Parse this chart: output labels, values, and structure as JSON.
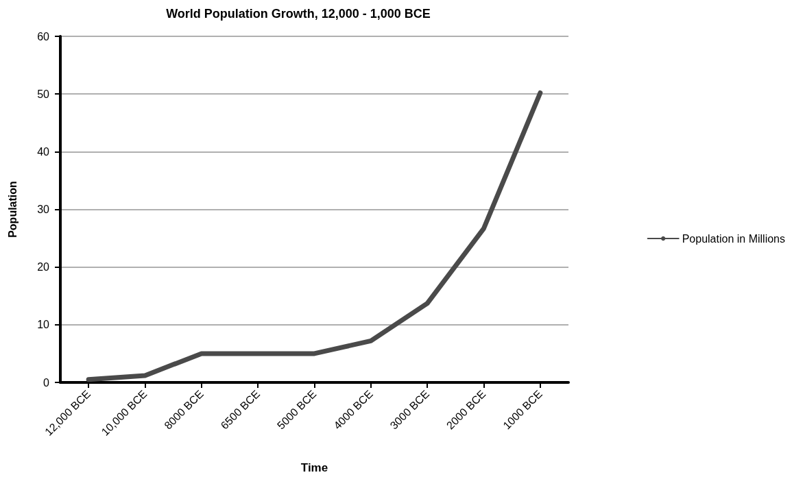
{
  "chart_data": {
    "type": "line",
    "title": "World Population Growth, 12,000 - 1,000 BCE",
    "xlabel": "Time",
    "ylabel": "Population",
    "categories": [
      "12,000 BCE",
      "10,000 BCE",
      "8000 BCE",
      "6500 BCE",
      "5000 BCE",
      "4000 BCE",
      "3000 BCE",
      "2000 BCE",
      "1000 BCE"
    ],
    "series": [
      {
        "name": "Population in Millions",
        "color": "#4a4a4a",
        "values": [
          0.5,
          1.2,
          5,
          5,
          5,
          7.2,
          13.7,
          26.7,
          50.2
        ]
      }
    ],
    "ylim": [
      0,
      60
    ],
    "yticks": [
      0,
      10,
      20,
      30,
      40,
      50,
      60
    ],
    "grid": "y",
    "legend": "right",
    "marker": "none",
    "line_style": "solid"
  }
}
